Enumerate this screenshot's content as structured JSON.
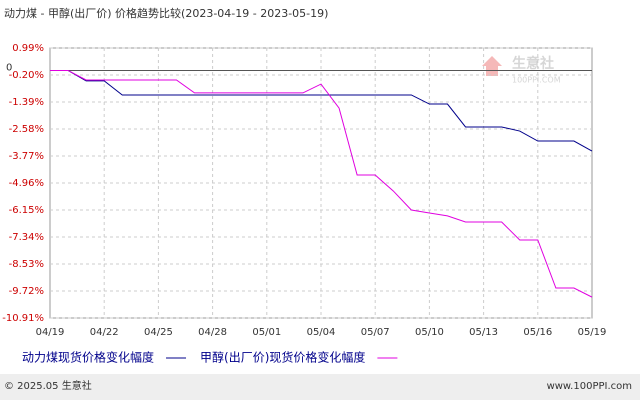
{
  "chart_data": {
    "type": "line",
    "title": "动力煤 - 甲醇(出厂价) 价格趋势比较(2023-04-19 - 2023-05-19)",
    "categories": [
      "04/19",
      null,
      null,
      "04/22",
      null,
      null,
      "04/25",
      null,
      null,
      "04/28",
      null,
      null,
      "05/01",
      null,
      null,
      "05/04",
      null,
      null,
      "05/07",
      null,
      null,
      "05/10",
      null,
      null,
      "05/13",
      null,
      null,
      "05/16",
      null,
      null,
      "05/19"
    ],
    "series": [
      {
        "name": "动力煤现货价格变化幅度",
        "color": "#00008b",
        "values": [
          0,
          0,
          -0.46,
          -0.46,
          -1.08,
          -1.08,
          -1.08,
          -1.08,
          -1.08,
          -1.08,
          -1.08,
          -1.08,
          -1.08,
          -1.08,
          -1.08,
          -1.08,
          -1.08,
          -1.08,
          -1.08,
          -1.08,
          -1.08,
          -1.48,
          -1.48,
          -2.49,
          -2.49,
          -2.49,
          -2.67,
          -3.11,
          -3.11,
          -3.11,
          -3.55
        ]
      },
      {
        "name": "甲醇(出厂价)现货价格变化幅度",
        "color": "#e000e0",
        "values": [
          0,
          0,
          -0.42,
          -0.42,
          -0.42,
          -0.42,
          -0.42,
          -0.42,
          -0.99,
          -0.99,
          -0.99,
          -0.99,
          -0.99,
          -0.99,
          -0.99,
          -0.6,
          -1.66,
          -4.61,
          -4.61,
          -5.31,
          -6.15,
          -6.28,
          -6.41,
          -6.68,
          -6.68,
          -6.68,
          -7.47,
          -7.47,
          -9.59,
          -9.59,
          -9.99
        ]
      }
    ],
    "ylim": [
      -10.91,
      0.99
    ],
    "yticks": [
      {
        "value": 0.99,
        "label": "0.99%"
      },
      {
        "value": -0.2,
        "label": "-0.20%"
      },
      {
        "value": -1.39,
        "label": "-1.39%"
      },
      {
        "value": -2.58,
        "label": "-2.58%"
      },
      {
        "value": -3.77,
        "label": "-3.77%"
      },
      {
        "value": -4.96,
        "label": "-4.96%"
      },
      {
        "value": -6.15,
        "label": "-6.15%"
      },
      {
        "value": -7.34,
        "label": "-7.34%"
      },
      {
        "value": -8.53,
        "label": "-8.53%"
      },
      {
        "value": -9.72,
        "label": "-9.72%"
      },
      {
        "value": -10.91,
        "label": "-10.91%"
      }
    ],
    "zero_line": {
      "value": 0,
      "label": "0"
    },
    "grid": true,
    "watermark": {
      "name": "生意社",
      "site": "100PPI.COM"
    },
    "footer": {
      "left": "© 2025.05 生意社",
      "right": "www.100PPI.com"
    }
  }
}
